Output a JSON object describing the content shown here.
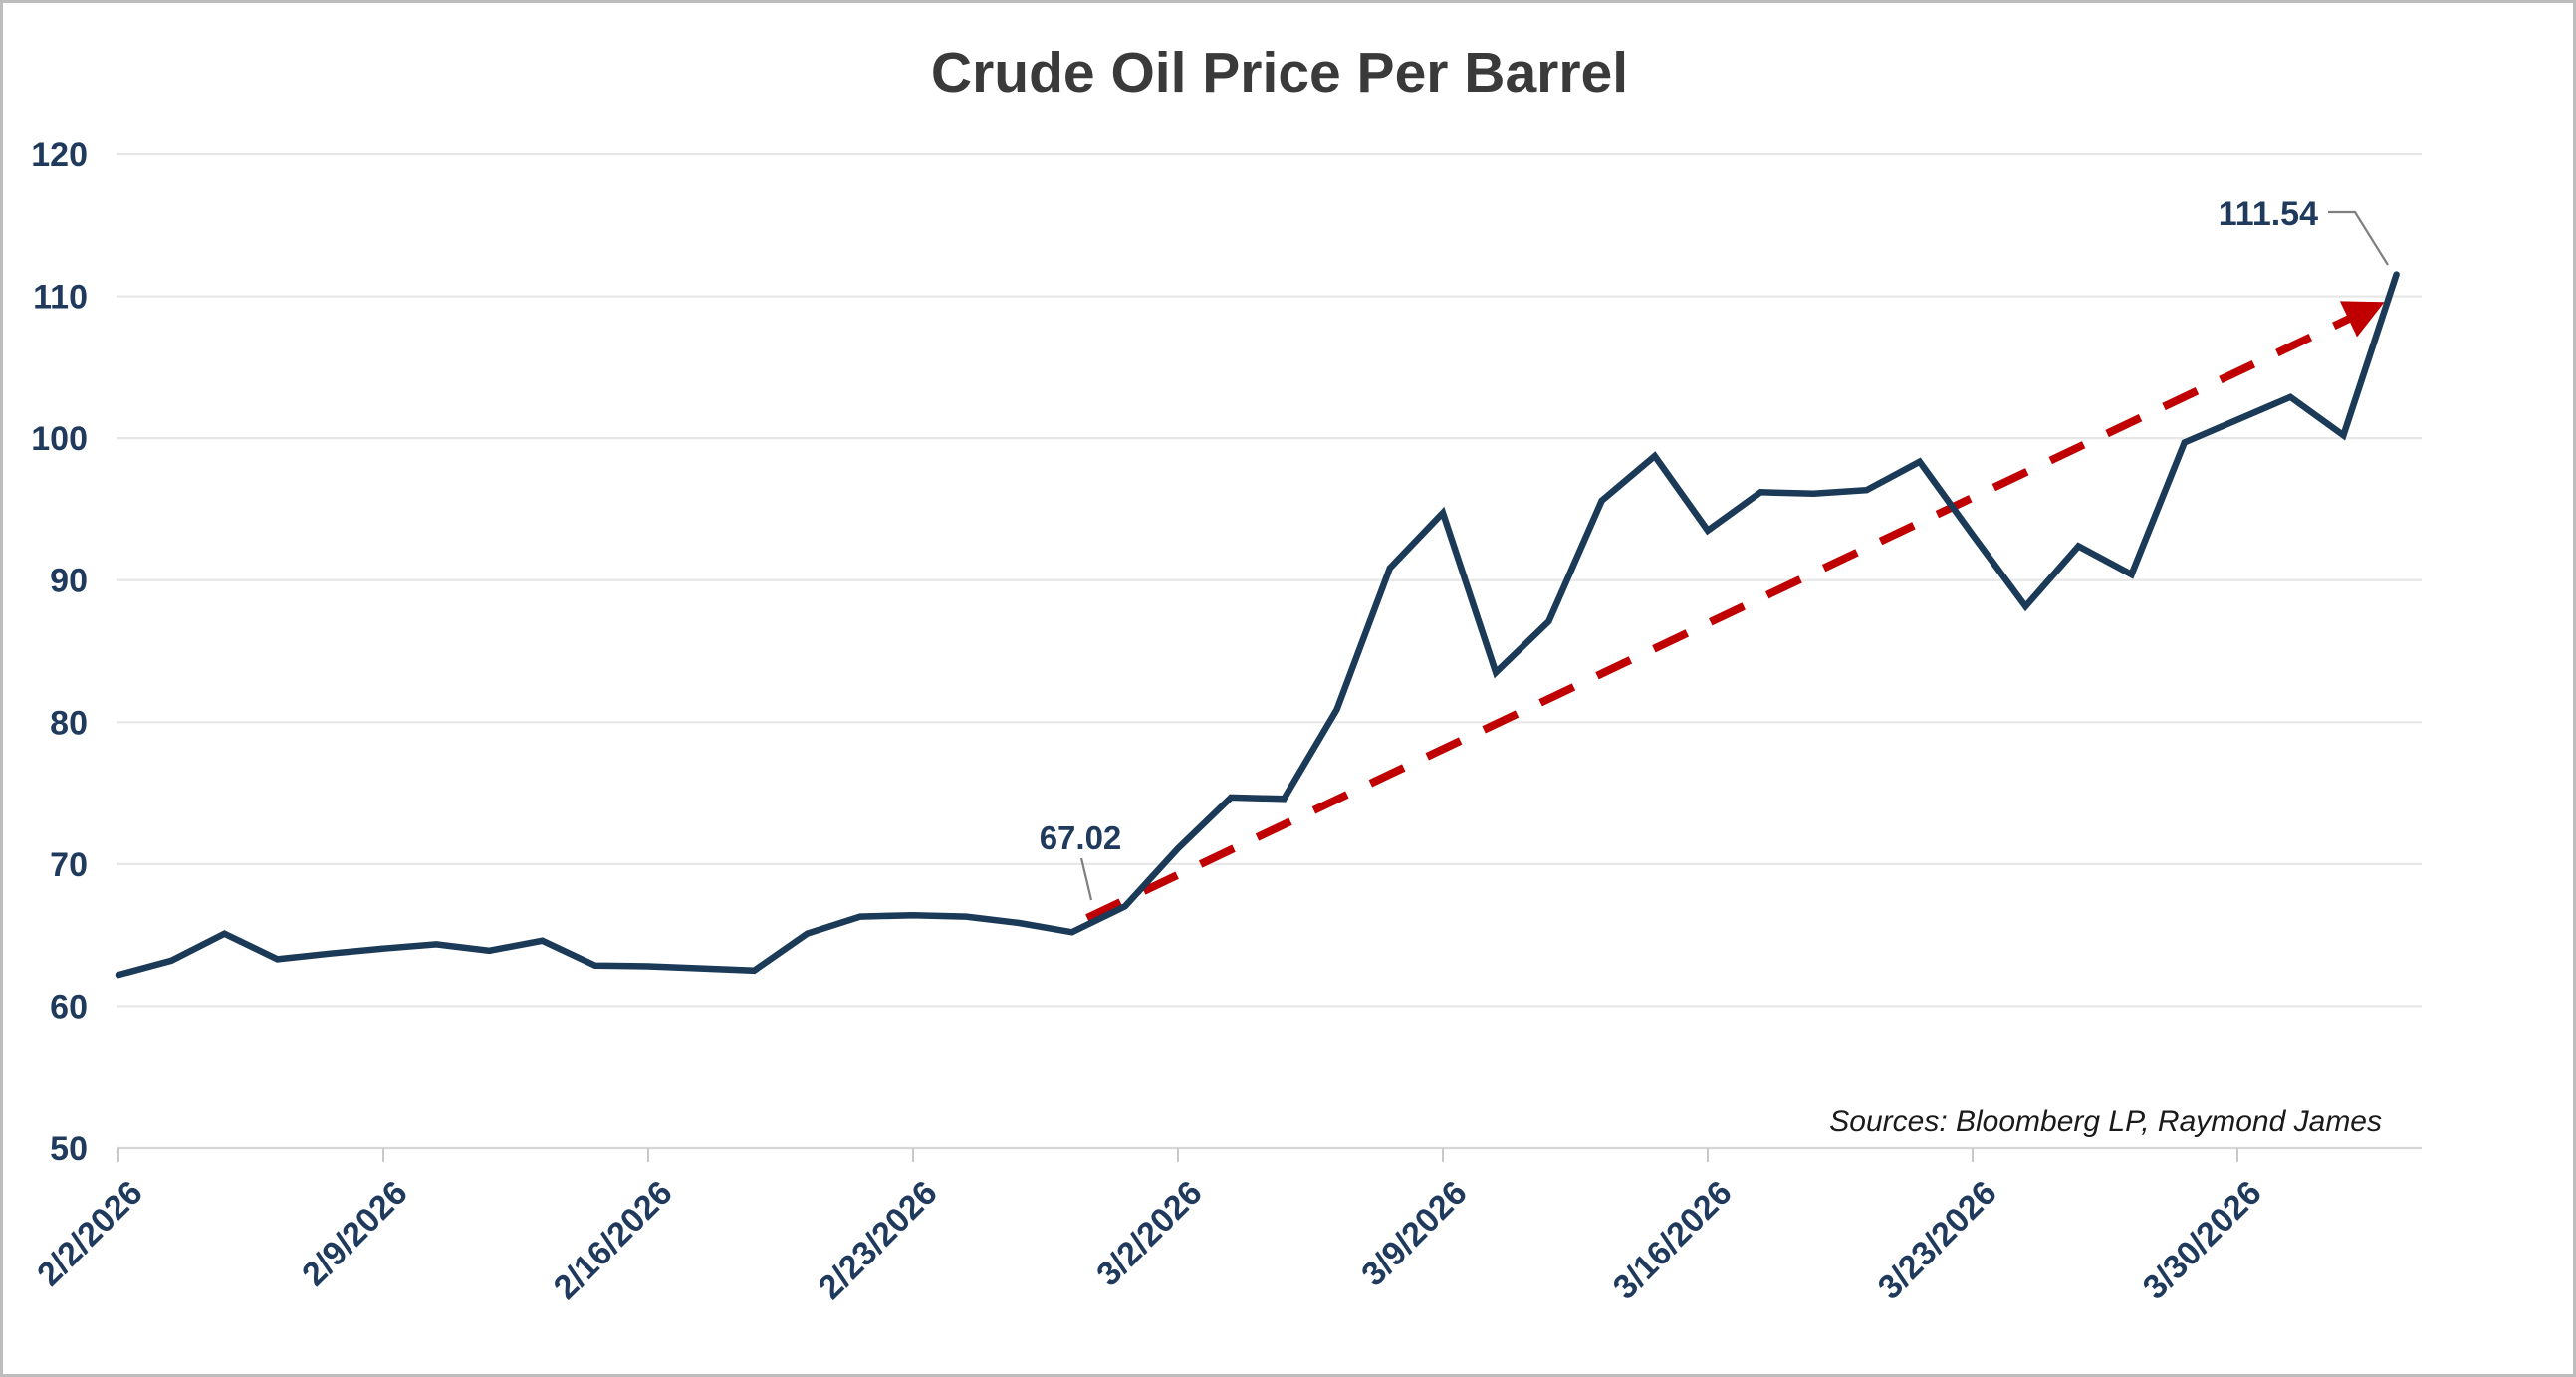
{
  "title": "Crude Oil Price Per Barrel",
  "source_note": "Sources: Bloomberg LP, Raymond James",
  "colors": {
    "series_line": "#1b3a57",
    "axis_text": "#1f3a5c",
    "title_text": "#3a3a3a",
    "trend_arrow": "#c00000",
    "gridline": "#e7e7e7",
    "axis_line": "#d6d6d6",
    "tick_mark": "#c9c9c9",
    "callout_line": "#7f7f7f",
    "source_text": "#1a1a1a",
    "background": "#ffffff"
  },
  "chart_data": {
    "type": "line",
    "title": "Crude Oil Price Per Barrel",
    "xlabel": "",
    "ylabel": "",
    "ylim": [
      50,
      120
    ],
    "grid": true,
    "legend": "none",
    "categories": [
      "2/2/2026",
      "2/3/2026",
      "2/4/2026",
      "2/5/2026",
      "2/6/2026",
      "2/9/2026",
      "2/10/2026",
      "2/11/2026",
      "2/12/2026",
      "2/13/2026",
      "2/16/2026",
      "2/17/2026",
      "2/18/2026",
      "2/19/2026",
      "2/20/2026",
      "2/23/2026",
      "2/24/2026",
      "2/25/2026",
      "2/26/2026",
      "2/27/2026",
      "3/2/2026",
      "3/3/2026",
      "3/4/2026",
      "3/5/2026",
      "3/6/2026",
      "3/9/2026",
      "3/10/2026",
      "3/11/2026",
      "3/12/2026",
      "3/13/2026",
      "3/16/2026",
      "3/17/2026",
      "3/18/2026",
      "3/19/2026",
      "3/20/2026",
      "3/23/2026",
      "3/24/2026",
      "3/25/2026",
      "3/26/2026",
      "3/27/2026",
      "3/30/2026",
      "3/31/2026",
      "4/1/2026",
      "4/2/2026"
    ],
    "series": [
      {
        "name": "Crude Oil Price Per Barrel",
        "values": [
          62.2,
          63.2,
          65.1,
          63.3,
          63.7,
          64.05,
          64.35,
          63.9,
          64.6,
          62.85,
          62.8,
          62.65,
          62.5,
          65.1,
          66.3,
          66.4,
          66.3,
          65.85,
          65.2,
          67.02,
          71.1,
          74.7,
          74.6,
          80.9,
          90.85,
          94.75,
          83.5,
          87.1,
          95.6,
          98.75,
          93.5,
          96.2,
          96.1,
          96.35,
          98.35,
          93.2,
          88.15,
          92.4,
          90.4,
          99.7,
          101.3,
          102.9,
          100.2,
          111.54
        ]
      }
    ],
    "x_tick_labels": [
      "2/2/2026",
      "2/9/2026",
      "2/16/2026",
      "2/23/2026",
      "3/2/2026",
      "3/9/2026",
      "3/16/2026",
      "3/23/2026",
      "3/30/2026"
    ],
    "x_tick_indices": [
      0,
      5,
      10,
      15,
      20,
      25,
      30,
      35,
      40
    ],
    "y_tick_labels": [
      "50",
      "60",
      "70",
      "80",
      "90",
      "100",
      "110",
      "120"
    ],
    "annotations": [
      {
        "label": "67.02",
        "point_index": 19
      },
      {
        "label": "111.54",
        "point_index": 43
      }
    ],
    "trend_line": {
      "style": "dashed-arrow",
      "from_index": 19,
      "from_value": 66.2,
      "to_index": 43,
      "to_value": 109.6
    }
  }
}
